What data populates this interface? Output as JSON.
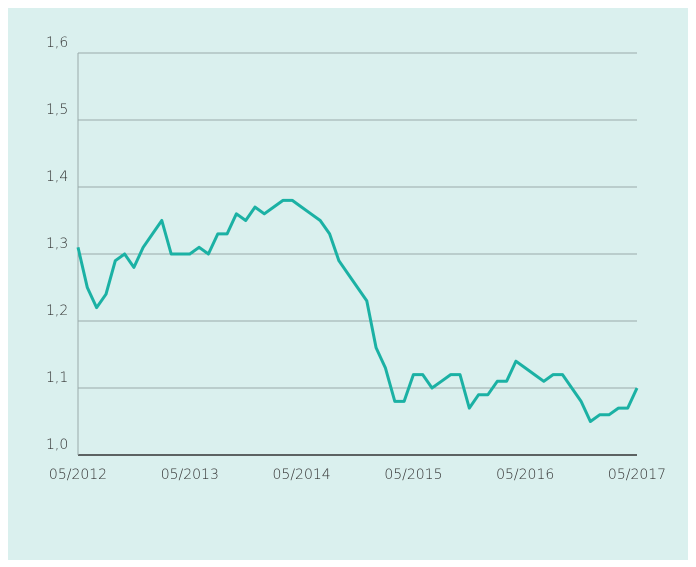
{
  "chart_data": {
    "type": "line",
    "x": [
      "05/2012",
      null,
      null,
      null,
      null,
      null,
      null,
      null,
      null,
      null,
      null,
      null,
      "05/2013",
      null,
      null,
      null,
      null,
      null,
      null,
      null,
      null,
      null,
      null,
      null,
      "05/2014",
      null,
      null,
      null,
      null,
      null,
      null,
      null,
      null,
      null,
      null,
      null,
      "05/2015",
      null,
      null,
      null,
      null,
      null,
      null,
      null,
      null,
      null,
      null,
      null,
      "05/2016",
      null,
      null,
      null,
      null,
      null,
      null,
      null,
      null,
      null,
      null,
      null,
      "05/2017"
    ],
    "series": [
      {
        "color": "#1bb1a4",
        "values": [
          1.31,
          1.25,
          1.22,
          1.24,
          1.29,
          1.3,
          1.28,
          1.31,
          1.33,
          1.35,
          1.3,
          1.3,
          1.3,
          1.31,
          1.3,
          1.33,
          1.33,
          1.36,
          1.35,
          1.37,
          1.36,
          1.37,
          1.38,
          1.38,
          1.37,
          1.36,
          1.35,
          1.33,
          1.29,
          1.27,
          1.25,
          1.23,
          1.16,
          1.13,
          1.08,
          1.08,
          1.12,
          1.12,
          1.1,
          1.11,
          1.12,
          1.12,
          1.07,
          1.09,
          1.09,
          1.11,
          1.11,
          1.14,
          1.13,
          1.12,
          1.11,
          1.12,
          1.12,
          1.1,
          1.08,
          1.05,
          1.06,
          1.06,
          1.07,
          1.07,
          1.1
        ]
      }
    ],
    "ylim": [
      1.0,
      1.6
    ],
    "yticks": [
      {
        "value": 1.0,
        "label": "1,0"
      },
      {
        "value": 1.1,
        "label": "1,1"
      },
      {
        "value": 1.2,
        "label": "1,2"
      },
      {
        "value": 1.3,
        "label": "1,3"
      },
      {
        "value": 1.4,
        "label": "1,4"
      },
      {
        "value": 1.5,
        "label": "1,5"
      },
      {
        "value": 1.6,
        "label": "1,6"
      }
    ],
    "grid": true
  }
}
